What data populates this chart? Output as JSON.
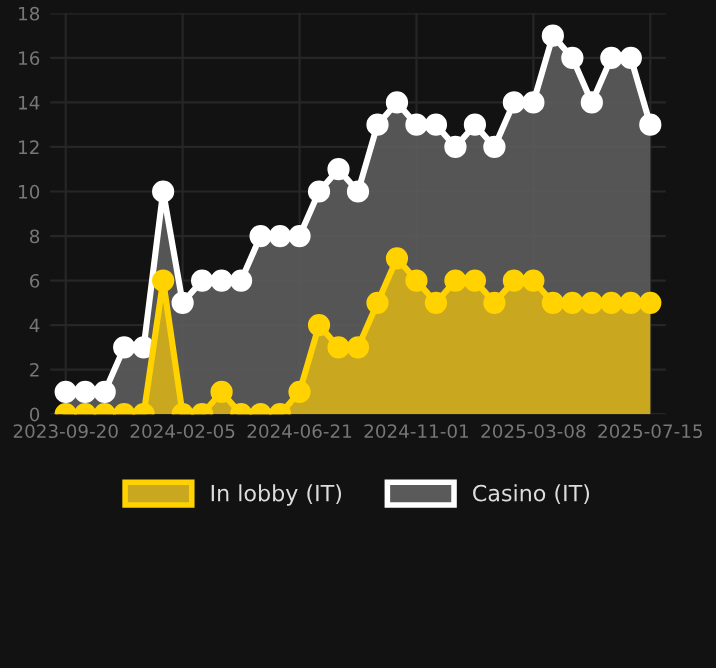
{
  "chart_data": {
    "type": "area",
    "categories": [
      "2023-09-20",
      null,
      null,
      null,
      null,
      null,
      "2024-02-05",
      null,
      null,
      null,
      null,
      null,
      "2024-06-21",
      null,
      null,
      null,
      null,
      null,
      "2024-11-01",
      null,
      null,
      null,
      null,
      null,
      "2025-03-08",
      null,
      null,
      null,
      null,
      null,
      "2025-07-15"
    ],
    "series": [
      {
        "name": "In lobby (IT)",
        "color": "#ffd200",
        "values": [
          0,
          0,
          0,
          0,
          0,
          6,
          0,
          0,
          1,
          0,
          0,
          0,
          1,
          4,
          3,
          3,
          5,
          7,
          6,
          5,
          6,
          6,
          5,
          6,
          6,
          5,
          5,
          5,
          5,
          5,
          5
        ]
      },
      {
        "name": "Casino (IT)",
        "color": "#ffffff",
        "values": [
          1,
          1,
          1,
          3,
          3,
          10,
          5,
          6,
          6,
          6,
          8,
          8,
          8,
          10,
          11,
          10,
          13,
          14,
          13,
          13,
          12,
          13,
          12,
          14,
          14,
          17,
          16,
          14,
          16,
          16,
          13
        ]
      }
    ],
    "ylim": [
      0,
      18
    ],
    "yticks": [
      0,
      2,
      4,
      6,
      8,
      10,
      12,
      14,
      16,
      18
    ],
    "grid": true,
    "legend": "bottom",
    "marker": "circle"
  }
}
